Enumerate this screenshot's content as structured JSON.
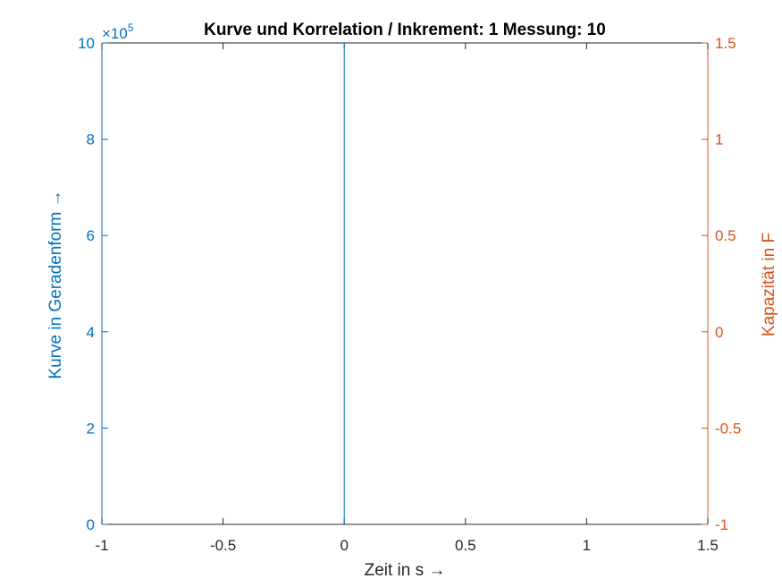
{
  "colors": {
    "left_axis": "#0072BD",
    "right_axis": "#D95319",
    "x_axis": "#262626",
    "line": "#0072BD"
  },
  "chart_data": {
    "type": "line",
    "title": "Kurve und Korrelation / Inkrement: 1 Messung: 10",
    "xlabel": "Zeit in s →",
    "ylabel_left": "Kurve in Geradenform →",
    "ylabel_right": "Kapazität in F",
    "left_exponent": "×10",
    "left_exponent_power": "5",
    "xlim": [
      -1,
      1.5
    ],
    "ylim_left": [
      0,
      10
    ],
    "ylim_right": [
      -1,
      1.5
    ],
    "x_ticks": [
      "-1",
      "-0.5",
      "0",
      "0.5",
      "1",
      "1.5"
    ],
    "y_left_ticks": [
      "0",
      "2",
      "4",
      "6",
      "8",
      "10"
    ],
    "y_right_ticks": [
      "-1",
      "-0.5",
      "0",
      "0.5",
      "1",
      "1.5"
    ],
    "grid": false,
    "series": [
      {
        "axis": "left",
        "x": [
          0,
          0
        ],
        "y": [
          0,
          10
        ]
      }
    ]
  }
}
